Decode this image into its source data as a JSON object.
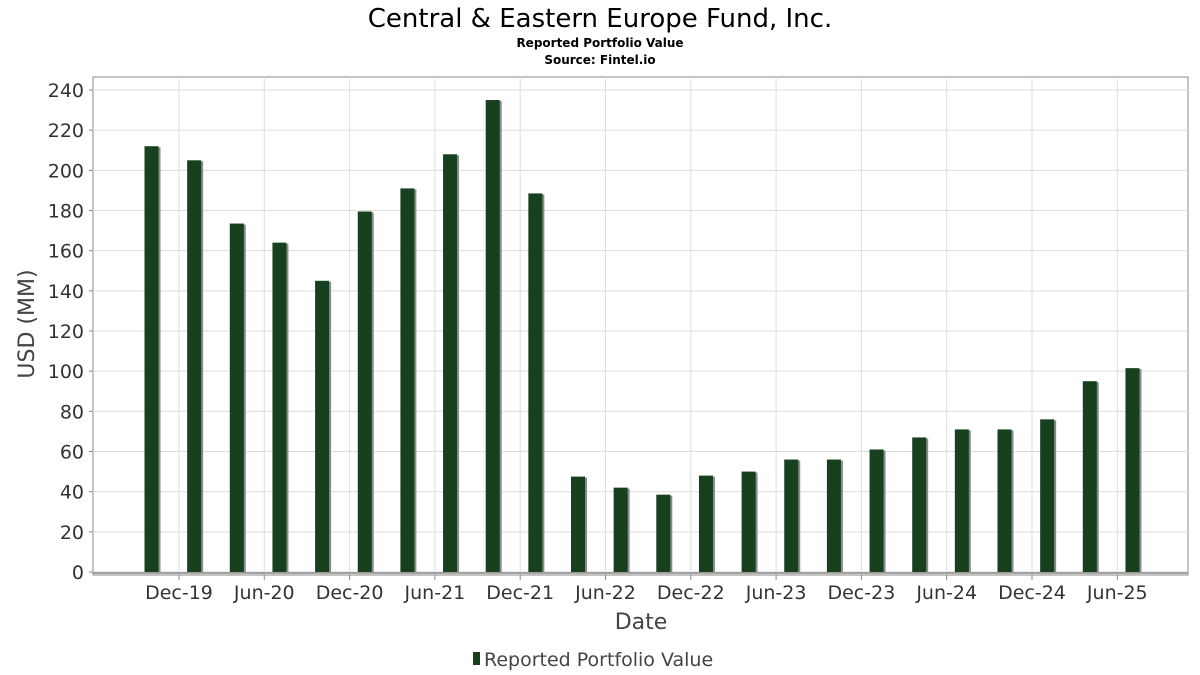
{
  "chart_data": {
    "type": "bar",
    "title": "Central & Eastern Europe Fund, Inc.",
    "subtitle": "Reported Portfolio Value",
    "source": "Source: Fintel.io",
    "xlabel": "Date",
    "ylabel": "USD (MM)",
    "ylim": [
      0,
      240
    ],
    "yticks": [
      0,
      20,
      40,
      60,
      80,
      100,
      120,
      140,
      160,
      180,
      200,
      220,
      240
    ],
    "x_tick_labels": [
      "Dec-19",
      "Jun-20",
      "Dec-20",
      "Jun-21",
      "Dec-21",
      "Jun-22",
      "Dec-22",
      "Jun-23",
      "Dec-23",
      "Jun-24",
      "Dec-24",
      "Jun-25"
    ],
    "grid": true,
    "legend_position": "bottom-center",
    "bar_color": "#17401f",
    "series": [
      {
        "name": "Reported Portfolio Value",
        "values": [
          212,
          205,
          173.5,
          164,
          145,
          179.5,
          191,
          208,
          235,
          188.5,
          47.5,
          42,
          38.5,
          48,
          50,
          56,
          56,
          61,
          67,
          71,
          71,
          76,
          95,
          101.5
        ]
      }
    ]
  }
}
